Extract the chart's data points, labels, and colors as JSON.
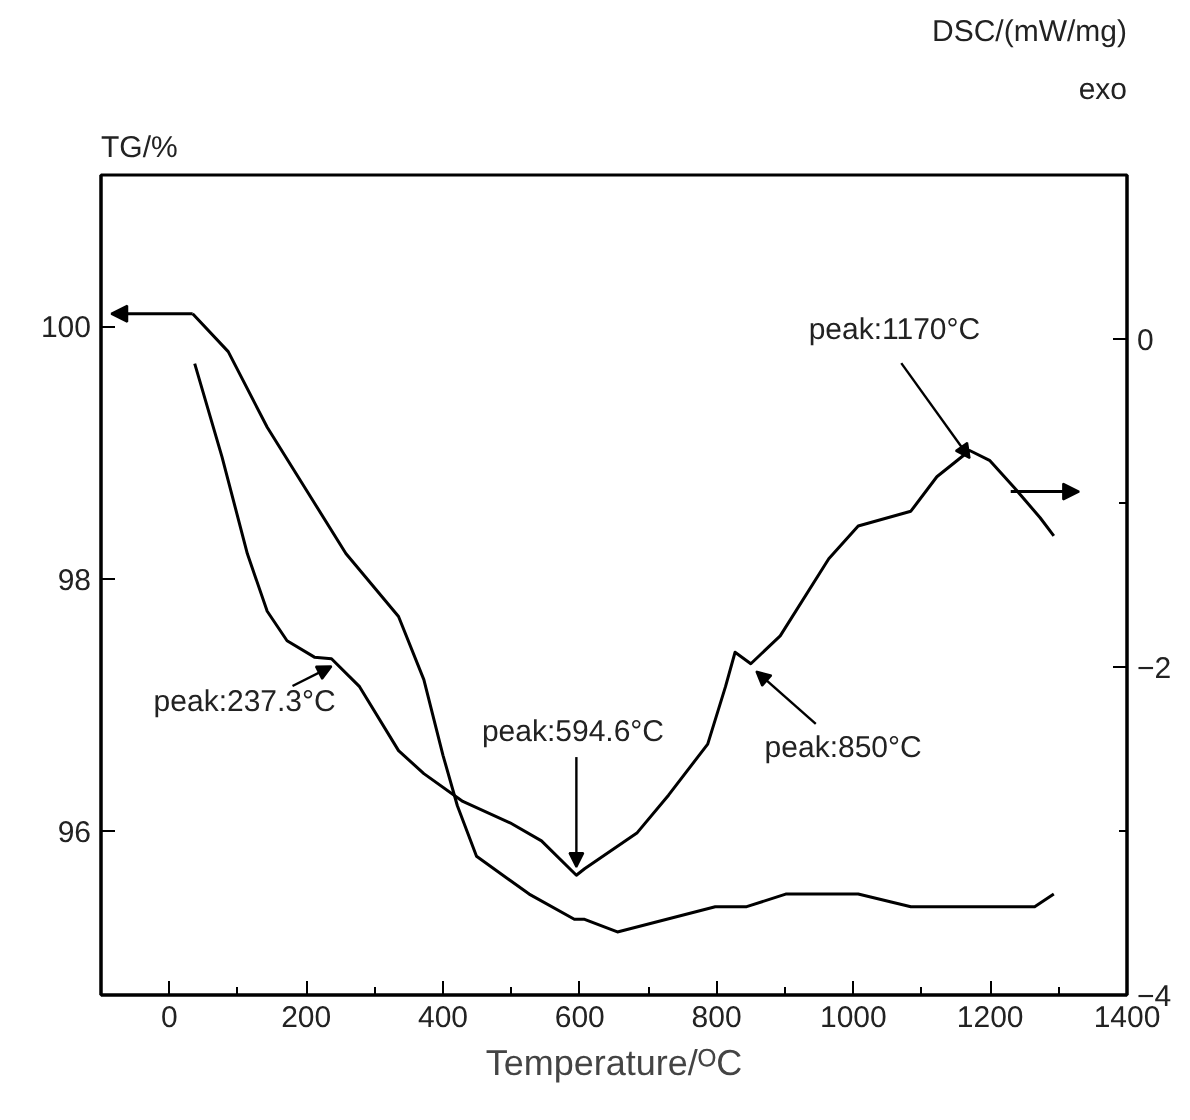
{
  "chart_data": {
    "type": "line",
    "xlabel": "Temperature/ᴼC",
    "ylabel": "TG/%",
    "y2label": "DSC/(mW/mg)",
    "xlim": [
      -100,
      1400
    ],
    "xticks": [
      0,
      {
        "value": 100,
        "label": null
      },
      200,
      {
        "value": 300,
        "label": null
      },
      400,
      {
        "value": 500,
        "label": null
      },
      600,
      {
        "value": 700,
        "label": null
      },
      800,
      {
        "value": 900,
        "label": null
      },
      1000,
      {
        "value": 1100,
        "label": null
      },
      1200,
      {
        "value": 1300,
        "label": null
      },
      1400
    ],
    "ylim": [
      94.7,
      101.2
    ],
    "yticks": [
      96,
      98,
      100
    ],
    "y2lim": [
      -4,
      1
    ],
    "y2ticks": [
      -4,
      {
        "value": -3,
        "label": null
      },
      -2,
      {
        "value": -1,
        "label": null
      },
      0
    ],
    "grid": false,
    "marker": "none",
    "line_style": "solid",
    "series": [
      {
        "color": "#000000",
        "x": [
          34,
          86,
          143,
          212,
          258,
          335,
          372,
          400,
          421,
          449,
          526,
          592,
          607,
          655,
          798,
          844,
          901,
          1007,
          1084,
          1130,
          1265,
          1293
        ],
        "values": [
          100.1,
          99.8,
          99.2,
          98.6,
          98.2,
          97.7,
          97.2,
          96.6,
          96.2,
          95.8,
          95.5,
          95.3,
          95.3,
          95.2,
          95.4,
          95.4,
          95.5,
          95.5,
          95.4,
          95.4,
          95.4,
          95.5
        ]
      },
      {
        "color": "#000000",
        "axis": "y2",
        "x": [
          37,
          77,
          114,
          143,
          172,
          212,
          237,
          278,
          335,
          372,
          429,
          498,
          544,
          595,
          607,
          684,
          730,
          787,
          813,
          827,
          850,
          893,
          964,
          1007,
          1084,
          1122,
          1170,
          1199,
          1236,
          1273,
          1293
        ],
        "values": [
          -0.15,
          -0.72,
          -1.31,
          -1.66,
          -1.84,
          -1.94,
          -1.95,
          -2.12,
          -2.51,
          -2.65,
          -2.82,
          -2.95,
          -3.06,
          -3.27,
          -3.23,
          -3.01,
          -2.78,
          -2.47,
          -2.12,
          -1.91,
          -1.98,
          -1.81,
          -1.34,
          -1.14,
          -1.05,
          -0.84,
          -0.68,
          -0.74,
          -0.91,
          -1.09,
          -1.2
        ]
      }
    ],
    "annotations": [
      {
        "text": "peak:237.3°C",
        "x": 237,
        "y": 97.37
      },
      {
        "text": "peak:594.6°C",
        "x": 595,
        "y": 95.65
      },
      {
        "text": "peak:850°C",
        "x": 850,
        "y": 97.33
      },
      {
        "text": "peak:1170°C",
        "x": 1170,
        "y": 99.02
      },
      "exo"
    ]
  }
}
